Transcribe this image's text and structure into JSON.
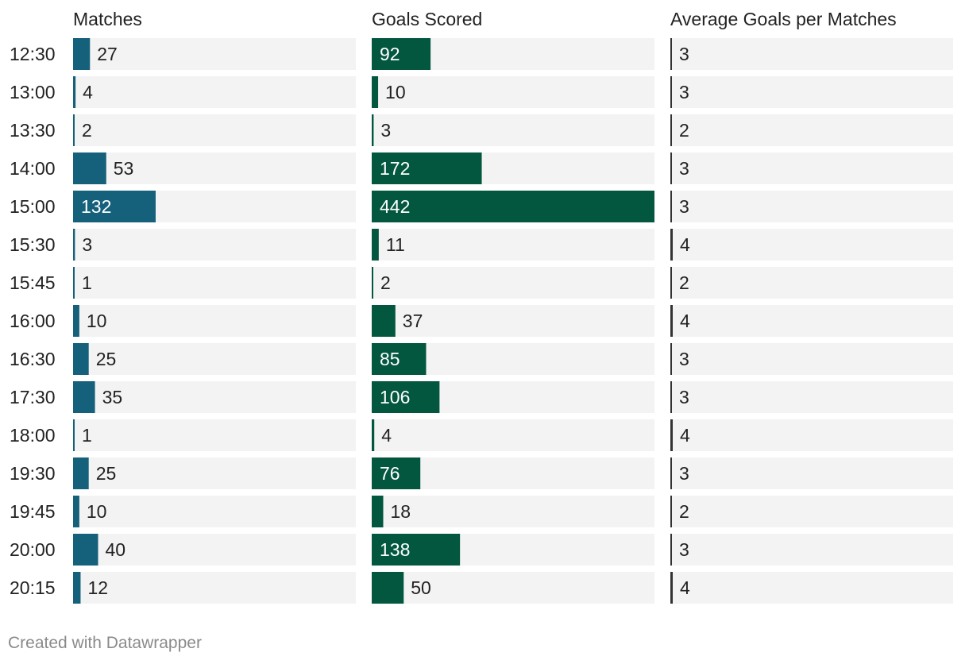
{
  "chart_data": {
    "type": "bar",
    "categories": [
      "12:30",
      "13:00",
      "13:30",
      "14:00",
      "15:00",
      "15:30",
      "15:45",
      "16:00",
      "16:30",
      "17:30",
      "18:00",
      "19:30",
      "19:45",
      "20:00",
      "20:15"
    ],
    "series": [
      {
        "name": "Matches",
        "color": "#15607a",
        "max": 452,
        "values": [
          27,
          4,
          2,
          53,
          132,
          3,
          1,
          10,
          25,
          35,
          1,
          25,
          10,
          40,
          12
        ]
      },
      {
        "name": "Goals Scored",
        "color": "#03573f",
        "max": 442,
        "values": [
          92,
          10,
          3,
          172,
          442,
          11,
          2,
          37,
          85,
          106,
          4,
          76,
          18,
          138,
          50
        ]
      },
      {
        "name": "Average Goals per Matches",
        "color": "#333333",
        "max": 442,
        "values": [
          3,
          3,
          2,
          3,
          3,
          4,
          2,
          4,
          3,
          3,
          4,
          3,
          2,
          3,
          4
        ]
      }
    ],
    "background_color": "#f3f3f3",
    "legend": "none",
    "grid": false
  },
  "footer": "Created with Datawrapper"
}
